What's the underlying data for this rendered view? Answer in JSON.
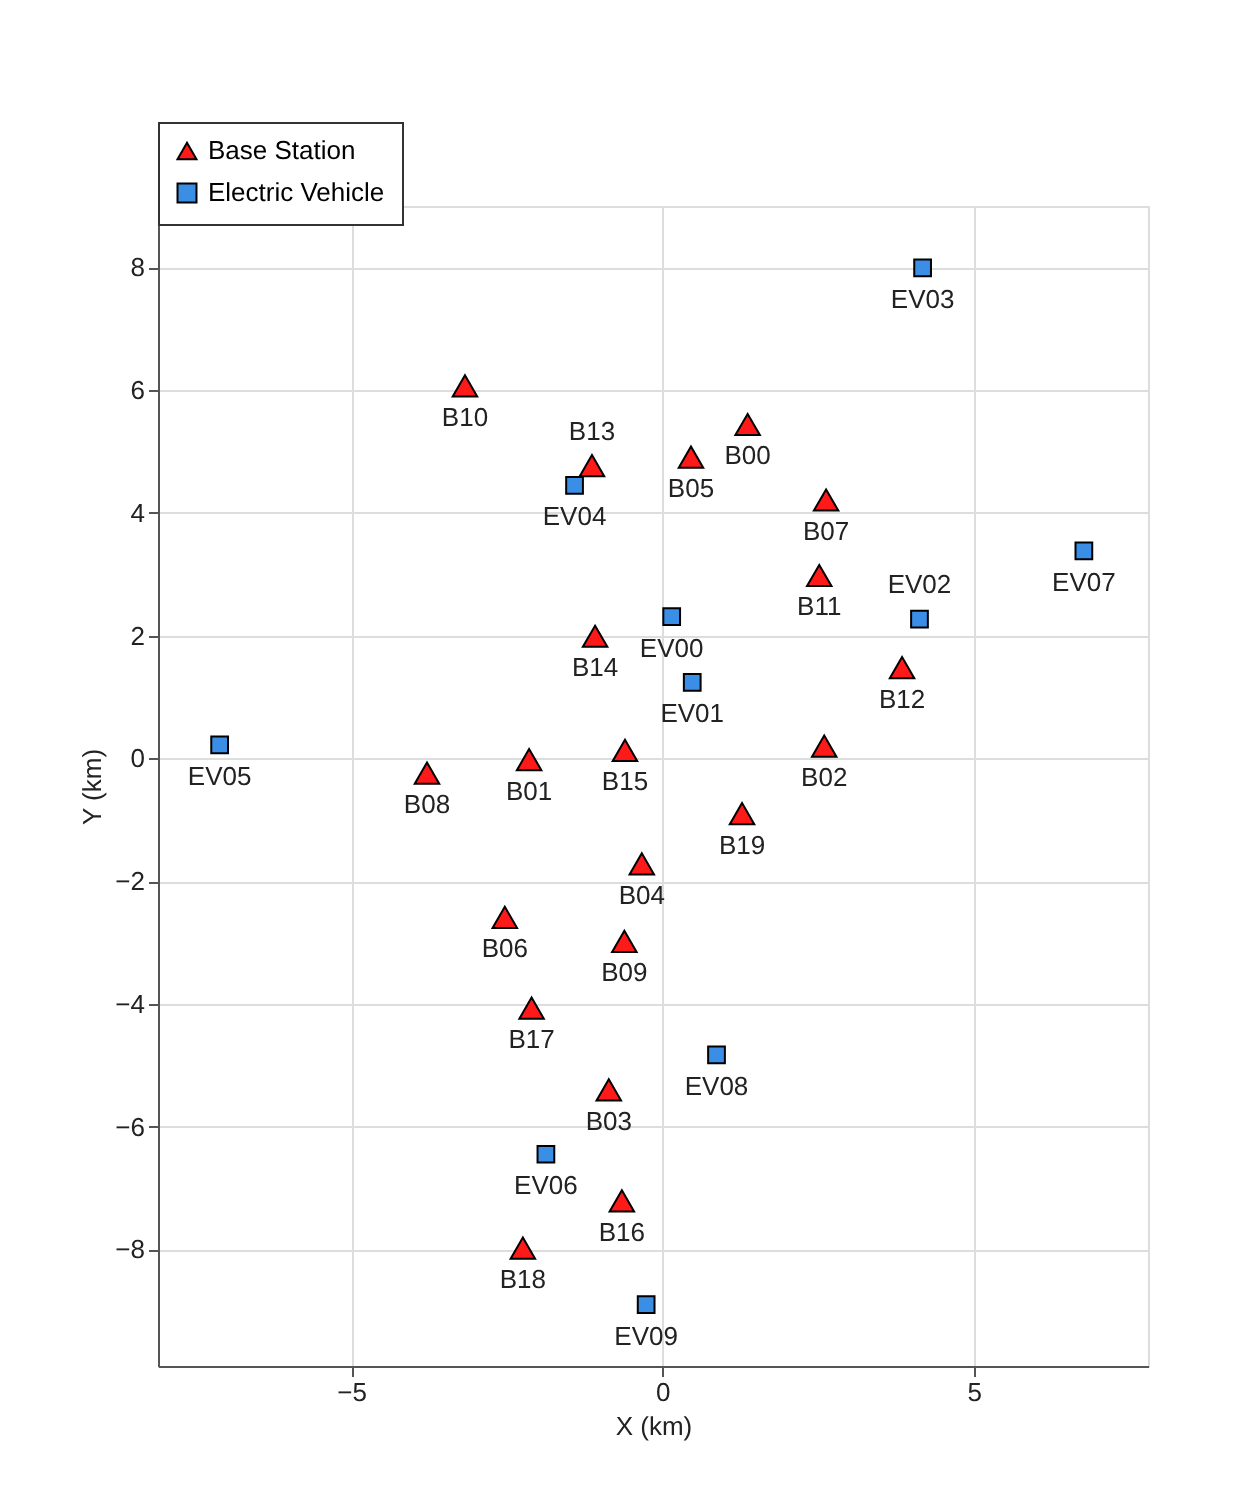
{
  "chart_data": {
    "type": "scatter",
    "xlabel": "X (km)",
    "ylabel": "Y (km)",
    "xlim": [
      -8.1,
      7.8
    ],
    "ylim": [
      -9.9,
      9.0
    ],
    "xticks": [
      -5,
      0,
      5
    ],
    "yticks": [
      -8,
      -6,
      -4,
      -2,
      0,
      2,
      4,
      6,
      8
    ],
    "grid": true,
    "legend": "top left",
    "series": [
      {
        "name": "Base Station",
        "color": "#ff1a1a",
        "marker": "triangle",
        "x": [
          1.37,
          -2.14,
          2.6,
          -0.86,
          -0.33,
          0.46,
          -2.53,
          2.63,
          -3.78,
          -0.61,
          -3.17,
          2.52,
          3.85,
          -1.13,
          -1.08,
          -0.6,
          -0.65,
          -2.1,
          -2.24,
          1.28
        ],
        "values": [
          5.44,
          -0.02,
          0.2,
          -5.4,
          -1.72,
          4.91,
          -2.59,
          4.21,
          -0.24,
          -2.98,
          6.07,
          2.98,
          1.48,
          4.77,
          1.99,
          0.13,
          -7.21,
          -4.07,
          -7.98,
          -0.9
        ]
      },
      {
        "name": "Electric Vehicle",
        "color": "#3a8ee6",
        "marker": "square",
        "x": [
          0.15,
          0.48,
          4.13,
          4.18,
          -1.41,
          -7.11,
          -1.87,
          6.77,
          0.87,
          -0.26
        ],
        "values": [
          2.31,
          1.24,
          2.27,
          7.99,
          4.45,
          0.22,
          -6.45,
          3.38,
          -4.83,
          -8.9
        ]
      }
    ],
    "annotations": [
      {
        "text": "B00",
        "x": 1.37,
        "y": 5.44
      },
      {
        "text": "B01",
        "x": -2.14,
        "y": -0.02
      },
      {
        "text": "B02",
        "x": 2.6,
        "y": 0.2
      },
      {
        "text": "B03",
        "x": -0.86,
        "y": -5.4
      },
      {
        "text": "B04",
        "x": -0.33,
        "y": -1.72
      },
      {
        "text": "B05",
        "x": 0.46,
        "y": 4.91
      },
      {
        "text": "B06",
        "x": -2.53,
        "y": -2.59
      },
      {
        "text": "B07",
        "x": 2.63,
        "y": 4.21
      },
      {
        "text": "B08",
        "x": -3.78,
        "y": -0.24
      },
      {
        "text": "B09",
        "x": -0.61,
        "y": -2.98
      },
      {
        "text": "B10",
        "x": -3.17,
        "y": 6.07
      },
      {
        "text": "B11",
        "x": 2.52,
        "y": 2.98
      },
      {
        "text": "B12",
        "x": 3.85,
        "y": 1.48
      },
      {
        "text": "B13",
        "x": -1.13,
        "y": 4.77
      },
      {
        "text": "B14",
        "x": -1.08,
        "y": 1.99
      },
      {
        "text": "B15",
        "x": -0.6,
        "y": 0.13
      },
      {
        "text": "B16",
        "x": -0.65,
        "y": -7.21
      },
      {
        "text": "B17",
        "x": -2.1,
        "y": -4.07
      },
      {
        "text": "B18",
        "x": -2.24,
        "y": -7.98
      },
      {
        "text": "B19",
        "x": 1.28,
        "y": -0.9
      },
      {
        "text": "EV00",
        "x": 0.15,
        "y": 2.31
      },
      {
        "text": "EV01",
        "x": 0.48,
        "y": 1.24
      },
      {
        "text": "EV02",
        "x": 4.13,
        "y": 2.27
      },
      {
        "text": "EV03",
        "x": 4.18,
        "y": 7.99
      },
      {
        "text": "EV04",
        "x": -1.41,
        "y": 4.45
      },
      {
        "text": "EV05",
        "x": -7.11,
        "y": 0.22
      },
      {
        "text": "EV06",
        "x": -1.87,
        "y": -6.45
      },
      {
        "text": "EV07",
        "x": 6.77,
        "y": 3.38
      },
      {
        "text": "EV08",
        "x": 0.87,
        "y": -4.83
      },
      {
        "text": "EV09",
        "x": -0.26,
        "y": -8.9
      }
    ]
  }
}
